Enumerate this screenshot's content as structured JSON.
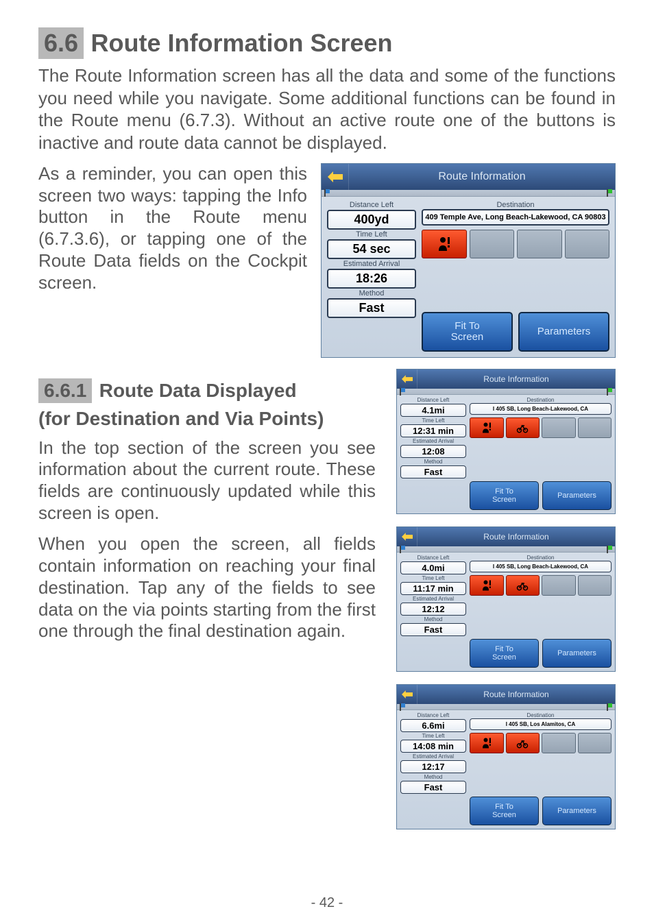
{
  "page_number": "- 42 -",
  "heading1": {
    "num": "6.6",
    "text": "Route Information Screen"
  },
  "para1": "The Route Information screen has all the data and some of the functions you need while you navigate. Some additional functions can be found in the Route menu (6.7.3). Without an active route one of the buttons is inactive and route data cannot be displayed.",
  "para2": "As a reminder, you can open this screen two ways: tapping the Info button in the Route menu (6.7.3.6), or tapping one of the Route Data fields on the Cockpit screen.",
  "heading2": {
    "num": "6.6.1",
    "text1": "Route Data Displayed",
    "text2": "(for Destination and Via Points)"
  },
  "para3": "In the top section of the screen you see information about the current route. These fields are continuously updated while this screen is open.",
  "para4": "When you open the screen, all fields contain information on reaching your final destination. Tap any of the fields to see data on the via points starting from the first one through the final destination again.",
  "panel_labels": {
    "title": "Route Information",
    "distance": "Distance Left",
    "destination": "Destination",
    "time": "Time Left",
    "arrival": "Estimated Arrival",
    "method": "Method",
    "fit": "Fit To\nScreen",
    "params": "Parameters"
  },
  "panel_big": {
    "distance": "400yd",
    "time": "54 sec",
    "arrival": "18:26",
    "method": "Fast",
    "destination": "409 Temple Ave, Long Beach-Lakewood, CA 90803",
    "icons": [
      "person"
    ]
  },
  "panels_small": [
    {
      "distance": "4.1mi",
      "time": "12:31 min",
      "arrival": "12:08",
      "method": "Fast",
      "destination": "I 405 SB, Long Beach-Lakewood, CA",
      "icons": [
        "person",
        "motorcycle"
      ]
    },
    {
      "distance": "4.0mi",
      "time": "11:17 min",
      "arrival": "12:12",
      "method": "Fast",
      "destination": "I 405 SB, Long Beach-Lakewood, CA",
      "icons": [
        "person",
        "motorcycle"
      ]
    },
    {
      "distance": "6.6mi",
      "time": "14:08 min",
      "arrival": "12:17",
      "method": "Fast",
      "destination": "I 405 SB, Los Alamitos, CA",
      "icons": [
        "person",
        "motorcycle"
      ]
    }
  ],
  "colors": {
    "heading_bg": "#b8b8b8",
    "text": "#595959",
    "panel_header_top": "#5078b0",
    "panel_header_bot": "#2d4a78",
    "button_top": "#5090d8",
    "button_bot": "#1a50a0",
    "icon_red_top": "#ff5a30",
    "icon_red_bot": "#c82000"
  }
}
